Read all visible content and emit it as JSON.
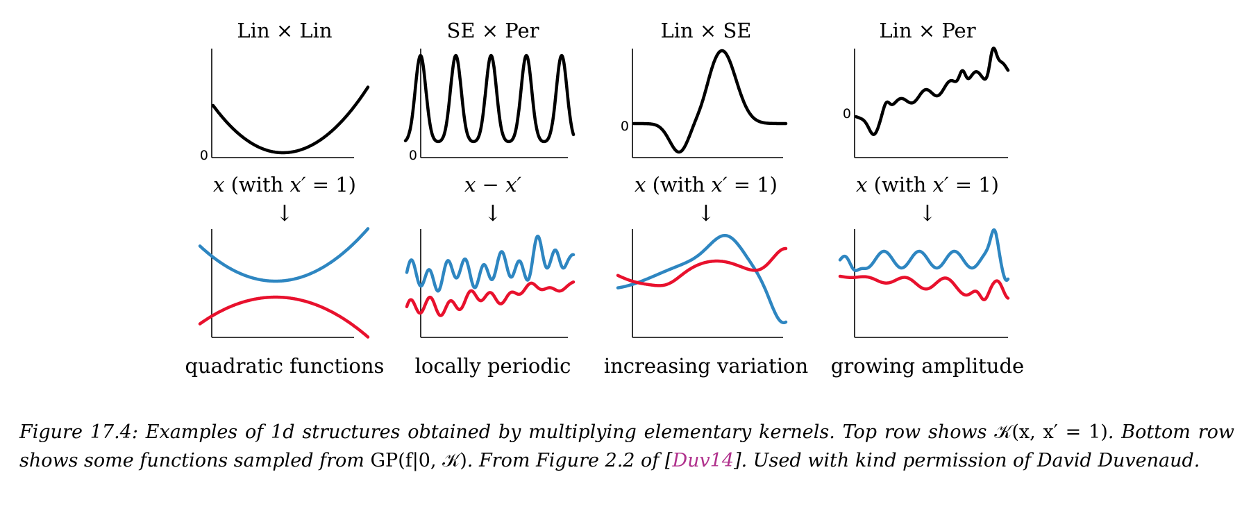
{
  "panels": [
    {
      "title": "Lin × Lin",
      "zero_label": "0",
      "xlabel_var": "x",
      "xlabel_rest": " (with ",
      "xlabel_var2": "x′",
      "xlabel_end": " = 1)",
      "arrow": "↓",
      "bottom_label": "quadratic functions"
    },
    {
      "title": "SE × Per",
      "zero_label": "0",
      "xlabel_var": "x",
      "xlabel_rest": " − ",
      "xlabel_var2": "x′",
      "xlabel_end": "",
      "arrow": "↓",
      "bottom_label": "locally periodic"
    },
    {
      "title": "Lin × SE",
      "zero_label": "0",
      "xlabel_var": "x",
      "xlabel_rest": " (with ",
      "xlabel_var2": "x′",
      "xlabel_end": " = 1)",
      "arrow": "↓",
      "bottom_label": "increasing variation"
    },
    {
      "title": "Lin × Per",
      "zero_label": "0",
      "xlabel_var": "x",
      "xlabel_rest": " (with ",
      "xlabel_var2": "x′",
      "xlabel_end": " = 1)",
      "arrow": "↓",
      "bottom_label": "growing amplitude"
    }
  ],
  "colors": {
    "kernel": "#000000",
    "sample_blue": "#2e86c1",
    "sample_red": "#e8112d",
    "axis": "#000000",
    "link": "#b0308c"
  },
  "caption": {
    "prefix": "Figure 17.4: Examples of 1d structures obtained by multiplying elementary kernels. Top row shows ",
    "kernel_expr": "𝒦(x, x′ = 1)",
    "mid": ". Bottom row shows some functions sampled from ",
    "gp_expr": "GP(f|0, 𝒦)",
    "mid2": ". From Figure 2.2 of [",
    "ref": "Duv14",
    "end": "]. Used with kind permission of David Duvenaud."
  }
}
